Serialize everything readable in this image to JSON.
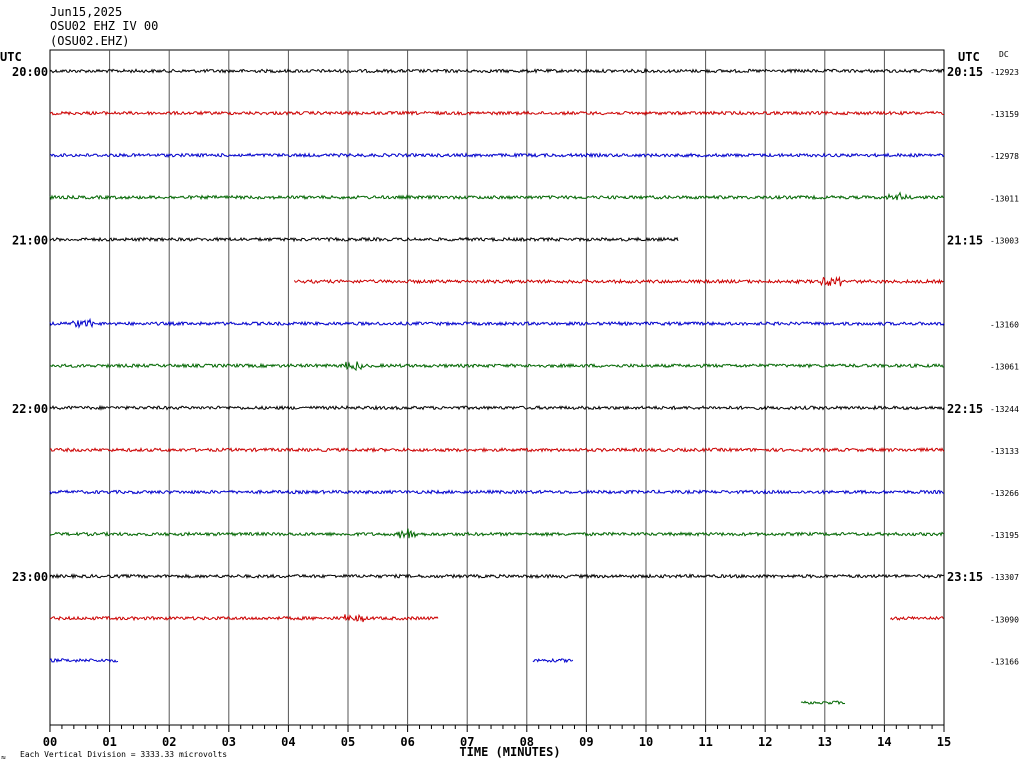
{
  "header": {
    "date": "Jun15,2025",
    "station": "OSU02 EHZ IV 00",
    "channel": "(OSU02.EHZ)"
  },
  "left_axis_title": "UTC",
  "right_axis_title": "UTC",
  "dc_title": "DC",
  "left_time_labels": [
    {
      "row": 0,
      "text": "20:00"
    },
    {
      "row": 4,
      "text": "21:00"
    },
    {
      "row": 8,
      "text": "22:00"
    },
    {
      "row": 12,
      "text": "23:00"
    }
  ],
  "right_time_labels": [
    {
      "row": 0,
      "text": "20:15"
    },
    {
      "row": 4,
      "text": "21:15"
    },
    {
      "row": 8,
      "text": "22:15"
    },
    {
      "row": 12,
      "text": "23:15"
    }
  ],
  "x_axis": {
    "label": "TIME (MINUTES)",
    "tick_labels": [
      "00",
      "01",
      "02",
      "03",
      "04",
      "05",
      "06",
      "07",
      "08",
      "09",
      "10",
      "11",
      "12",
      "13",
      "14",
      "15"
    ]
  },
  "footer_note": "Each Vertical Division = 3333.33 microvolts",
  "footer_mark": "≈",
  "colors": {
    "grid": "#000000",
    "trace_cycle": [
      "#000000",
      "#cc0000",
      "#0000cc",
      "#006600"
    ]
  },
  "chart_data": {
    "type": "line",
    "x_range_minutes": [
      0,
      15
    ],
    "grid": true,
    "row_count": 16,
    "rows": [
      {
        "row": 0,
        "color": "#000000",
        "segments": [
          [
            0,
            15
          ]
        ],
        "dc": "-12923",
        "events": []
      },
      {
        "row": 1,
        "color": "#cc0000",
        "segments": [
          [
            0,
            15
          ]
        ],
        "dc": "-13159",
        "events": []
      },
      {
        "row": 2,
        "color": "#0000cc",
        "segments": [
          [
            0,
            15
          ]
        ],
        "dc": "-12978",
        "events": []
      },
      {
        "row": 3,
        "color": "#006600",
        "segments": [
          [
            0,
            15
          ]
        ],
        "dc": "-13011",
        "events": [
          14.2
        ]
      },
      {
        "row": 4,
        "color": "#000000",
        "segments": [
          [
            0,
            10.55
          ]
        ],
        "dc": "-13003",
        "events": []
      },
      {
        "row": 5,
        "color": "#cc0000",
        "segments": [
          [
            4.1,
            15
          ]
        ],
        "dc": "",
        "events": [
          13.1
        ]
      },
      {
        "row": 6,
        "color": "#0000cc",
        "segments": [
          [
            0,
            15
          ]
        ],
        "dc": "-13160",
        "events": [
          0.55
        ]
      },
      {
        "row": 7,
        "color": "#006600",
        "segments": [
          [
            0,
            15
          ]
        ],
        "dc": "-13061",
        "events": [
          5.1
        ]
      },
      {
        "row": 8,
        "color": "#000000",
        "segments": [
          [
            0,
            15
          ]
        ],
        "dc": "-13244",
        "events": []
      },
      {
        "row": 9,
        "color": "#cc0000",
        "segments": [
          [
            0,
            15
          ]
        ],
        "dc": "-13133",
        "events": []
      },
      {
        "row": 10,
        "color": "#0000cc",
        "segments": [
          [
            0,
            15
          ]
        ],
        "dc": "-13266",
        "events": []
      },
      {
        "row": 11,
        "color": "#006600",
        "segments": [
          [
            0,
            15
          ]
        ],
        "dc": "-13195",
        "events": [
          6.0
        ]
      },
      {
        "row": 12,
        "color": "#000000",
        "segments": [
          [
            0,
            15
          ]
        ],
        "dc": "-13307",
        "events": []
      },
      {
        "row": 13,
        "color": "#cc0000",
        "segments": [
          [
            0,
            6.52
          ],
          [
            14.1,
            15
          ]
        ],
        "dc": "-13090",
        "events": [
          5.1
        ]
      },
      {
        "row": 14,
        "color": "#0000cc",
        "segments": [
          [
            0,
            1.15
          ],
          [
            8.1,
            8.78
          ]
        ],
        "dc": "-13166",
        "events": []
      },
      {
        "row": 15,
        "color": "#006600",
        "segments": [
          [
            12.6,
            13.35
          ]
        ],
        "dc": "",
        "events": []
      }
    ]
  }
}
